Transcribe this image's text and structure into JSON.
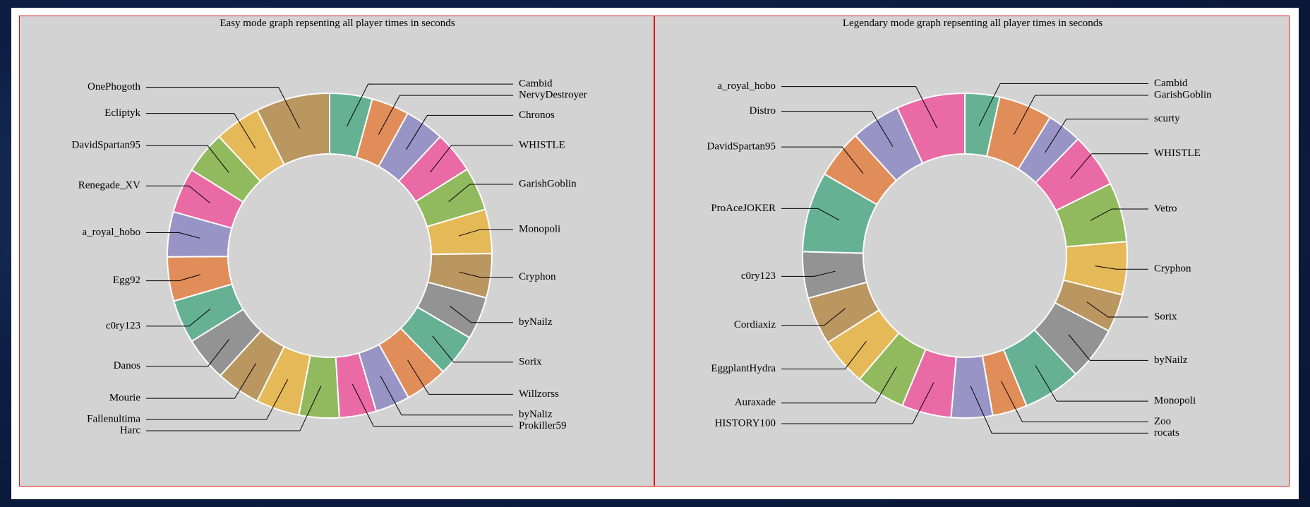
{
  "palette": [
    "#66b194",
    "#e18d59",
    "#9895c6",
    "#e96aa5",
    "#91b95d",
    "#e5b958",
    "#ba9660",
    "#939393"
  ],
  "chart_data": [
    {
      "type": "pie",
      "donut": true,
      "title": "Easy mode graph repsenting all player times in seconds",
      "unit": "seconds",
      "categories": [
        "Cambid",
        "NervyDestroyer",
        "Chronos",
        "WHISTLE",
        "GarishGoblin",
        "Monopoli",
        "Cryphon",
        "byNailz",
        "Sorix",
        "Willzorss",
        "byNaliz",
        "Prokiller59",
        "Harc",
        "Fallenultima",
        "Mourie",
        "Danos",
        "c0ry123",
        "Egg92",
        "a_royal_hobo",
        "Renegade_XV",
        "DavidSpartan95",
        "Ecliptyk",
        "OnePhogoth"
      ],
      "values": [
        5.3,
        4.7,
        4.9,
        5.2,
        5.4,
        5.5,
        5.5,
        5.3,
        5.3,
        5.3,
        4.3,
        4.6,
        5.0,
        5.4,
        5.5,
        5.5,
        5.4,
        5.5,
        5.6,
        5.6,
        5.3,
        5.7,
        9.2
      ],
      "colors": [
        "#66b194",
        "#e18d59",
        "#9895c6",
        "#e96aa5",
        "#91b95d",
        "#e5b958",
        "#ba9660",
        "#939393",
        "#66b194",
        "#e18d59",
        "#9895c6",
        "#e96aa5",
        "#91b95d",
        "#e5b958",
        "#ba9660",
        "#939393",
        "#66b194",
        "#e18d59",
        "#9895c6",
        "#e96aa5",
        "#91b95d",
        "#e5b958",
        "#ba9660"
      ],
      "legend": "none"
    },
    {
      "type": "pie",
      "donut": true,
      "title": "Legendary mode graph repsenting all player times in seconds",
      "unit": "seconds",
      "categories": [
        "Cambid",
        "GarishGoblin",
        "scurty",
        "WHISTLE",
        "Vetro",
        "Cryphon",
        "Sorix",
        "byNailz",
        "Monopoli",
        "Zoo",
        "rocats",
        "HISTORY100",
        "Auraxade",
        "EggplantHydra",
        "Cordiaxiz",
        "c0ry123",
        "ProAceJOKER",
        "DavidSpartan95",
        "Distro",
        "a_royal_hobo"
      ],
      "values": [
        4.2,
        6.5,
        4.2,
        6.6,
        7.2,
        6.4,
        4.6,
        6.5,
        7.0,
        4.2,
        5.0,
        6.0,
        6.0,
        5.8,
        5.8,
        5.6,
        9.7,
        5.9,
        6.0,
        8.3
      ],
      "colors": [
        "#66b194",
        "#e18d59",
        "#9895c6",
        "#e96aa5",
        "#91b95d",
        "#e5b958",
        "#ba9660",
        "#939393",
        "#66b194",
        "#e18d59",
        "#9895c6",
        "#e96aa5",
        "#91b95d",
        "#e5b958",
        "#ba9660",
        "#939393",
        "#66b194",
        "#e18d59",
        "#9895c6",
        "#e96aa5"
      ],
      "legend": "none"
    }
  ]
}
